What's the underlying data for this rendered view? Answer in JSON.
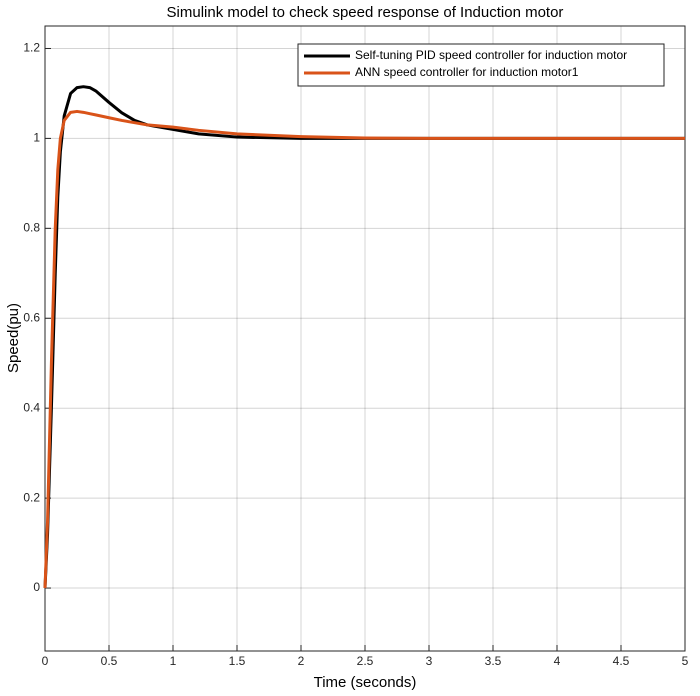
{
  "chart_data": {
    "type": "line",
    "title": "Simulink model to check speed response of Induction motor",
    "x_label": "Time (seconds)",
    "y_label": "Speed(pu)",
    "x": [
      0,
      0.02,
      0.05,
      0.08,
      0.1,
      0.12,
      0.15,
      0.2,
      0.25,
      0.3,
      0.35,
      0.4,
      0.5,
      0.6,
      0.7,
      0.8,
      1,
      1.2,
      1.5,
      2,
      2.5,
      3,
      4,
      5
    ],
    "series": [
      {
        "name": "Self-tuning PID speed controller for induction motor",
        "color": "#000000",
        "values": [
          0,
          0.12,
          0.4,
          0.7,
          0.87,
          0.97,
          1.05,
          1.1,
          1.113,
          1.115,
          1.113,
          1.105,
          1.08,
          1.057,
          1.04,
          1.03,
          1.02,
          1.01,
          1.003,
          1.0,
          1.0,
          1.0,
          1.0,
          1.0
        ]
      },
      {
        "name": "ANN speed controller for induction motor1",
        "color": "#d95319",
        "values": [
          0,
          0.15,
          0.5,
          0.8,
          0.93,
          1.0,
          1.04,
          1.058,
          1.06,
          1.058,
          1.055,
          1.052,
          1.046,
          1.04,
          1.035,
          1.03,
          1.025,
          1.018,
          1.01,
          1.004,
          1.001,
          1.0,
          1.0,
          1.0
        ]
      }
    ],
    "xlim": [
      0,
      5
    ],
    "xticks": [
      0,
      0.5,
      1,
      1.5,
      2,
      2.5,
      3,
      3.5,
      4,
      4.5,
      5
    ],
    "ylim": [
      -0.14,
      1.25
    ],
    "yticks": [
      0,
      0.2,
      0.4,
      0.6,
      0.8,
      1,
      1.2
    ],
    "grid": true,
    "legend": "top-right"
  }
}
